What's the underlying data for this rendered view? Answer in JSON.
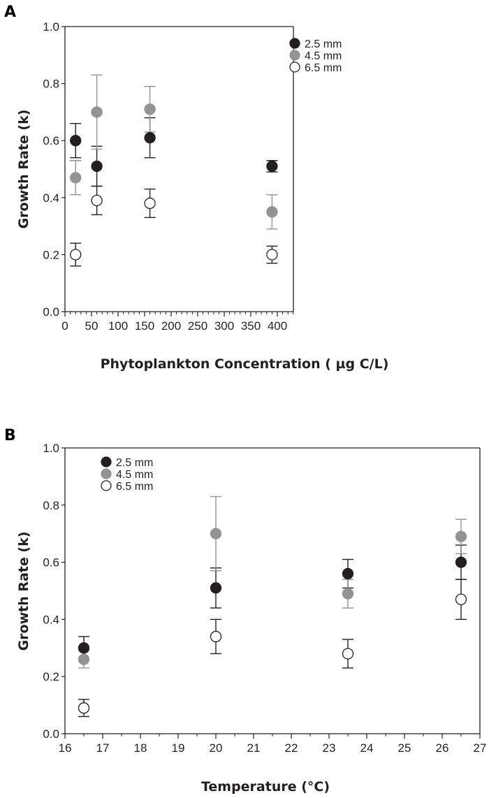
{
  "chart_data": [
    {
      "type": "scatter",
      "panel_label": "A",
      "xlabel": "Phytoplankton Concentration ( µg C/L)",
      "ylabel": "Growth Rate (k)",
      "xlim": [
        0,
        430
      ],
      "ylim": [
        0,
        1.0
      ],
      "xticks": [
        0,
        50,
        100,
        150,
        200,
        250,
        300,
        350,
        400
      ],
      "xminor_step": 10,
      "yticks": [
        "0.0",
        "0.2",
        "0.4",
        "0.6",
        "0.8",
        "1.0"
      ],
      "grid": false,
      "legend_position": "top-right",
      "error_bars": true,
      "series": [
        {
          "name": "2.5 mm",
          "color": "#231f20",
          "fill": "#231f20",
          "x": [
            20,
            60,
            160,
            390
          ],
          "y": [
            0.6,
            0.51,
            0.61,
            0.51
          ],
          "err_low": [
            0.54,
            0.44,
            0.54,
            0.49
          ],
          "err_high": [
            0.66,
            0.58,
            0.68,
            0.53
          ]
        },
        {
          "name": "4.5 mm",
          "color": "#939393",
          "fill": "#939393",
          "x": [
            20,
            60,
            160,
            390
          ],
          "y": [
            0.47,
            0.7,
            0.71,
            0.35
          ],
          "err_low": [
            0.41,
            0.57,
            0.63,
            0.29
          ],
          "err_high": [
            0.53,
            0.83,
            0.79,
            0.41
          ]
        },
        {
          "name": "6.5 mm",
          "color": "#231f20",
          "fill": "#ffffff",
          "x": [
            20,
            60,
            160,
            390
          ],
          "y": [
            0.2,
            0.39,
            0.38,
            0.2
          ],
          "err_low": [
            0.16,
            0.34,
            0.33,
            0.17
          ],
          "err_high": [
            0.24,
            0.44,
            0.43,
            0.23
          ]
        }
      ]
    },
    {
      "type": "scatter",
      "panel_label": "B",
      "xlabel": "Temperature (°C)",
      "ylabel": "Growth Rate (k)",
      "xlim": [
        16,
        27
      ],
      "ylim": [
        0,
        1.0
      ],
      "xticks": [
        16,
        17,
        18,
        19,
        20,
        21,
        22,
        23,
        24,
        25,
        26,
        27
      ],
      "xminor_step": 0.5,
      "yticks": [
        "0.0",
        "0.2",
        "0.4",
        "0.6",
        "0.8",
        "1.0"
      ],
      "grid": false,
      "legend_position": "top-left",
      "error_bars": true,
      "series": [
        {
          "name": "2.5 mm",
          "color": "#231f20",
          "fill": "#231f20",
          "x": [
            16.5,
            20,
            23.5,
            26.5
          ],
          "y": [
            0.3,
            0.51,
            0.56,
            0.6
          ],
          "err_low": [
            0.26,
            0.44,
            0.51,
            0.54
          ],
          "err_high": [
            0.34,
            0.58,
            0.61,
            0.66
          ]
        },
        {
          "name": "4.5 mm",
          "color": "#939393",
          "fill": "#939393",
          "x": [
            16.5,
            20,
            23.5,
            26.5
          ],
          "y": [
            0.26,
            0.7,
            0.49,
            0.69
          ],
          "err_low": [
            0.23,
            0.57,
            0.44,
            0.63
          ],
          "err_high": [
            0.29,
            0.83,
            0.54,
            0.75
          ]
        },
        {
          "name": "6.5 mm",
          "color": "#231f20",
          "fill": "#ffffff",
          "x": [
            16.5,
            20,
            23.5,
            26.5
          ],
          "y": [
            0.09,
            0.34,
            0.28,
            0.47
          ],
          "err_low": [
            0.06,
            0.28,
            0.23,
            0.4
          ],
          "err_high": [
            0.12,
            0.4,
            0.33,
            0.54
          ]
        }
      ]
    }
  ]
}
